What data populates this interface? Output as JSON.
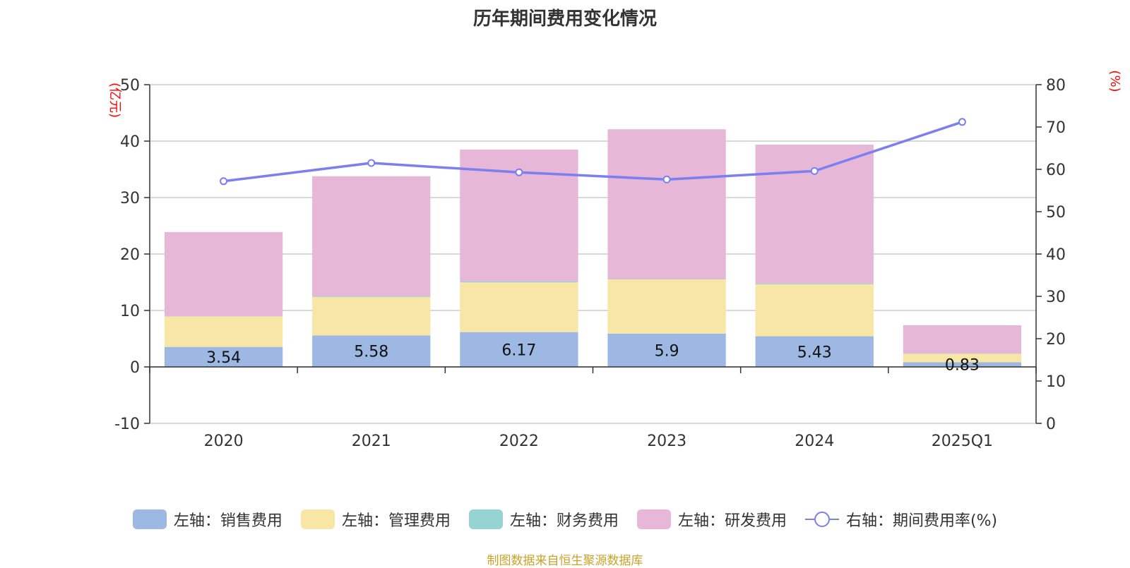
{
  "title": "历年期间费用变化情况",
  "source_note": "制图数据来自恒生聚源数据库",
  "colors": {
    "sales": "#9db8e2",
    "admin": "#f7e6a6",
    "finance": "#96d3d3",
    "rd": "#e6b7d7",
    "rate_line": "#7b7ff0",
    "axis": "#333333",
    "grid": "#cccccc",
    "unit_text": "#ff0000"
  },
  "legend": [
    {
      "label": "左轴：销售费用",
      "series": "sales",
      "kind": "bar"
    },
    {
      "label": "左轴：管理费用",
      "series": "admin",
      "kind": "bar"
    },
    {
      "label": "左轴：财务费用",
      "series": "finance",
      "kind": "bar"
    },
    {
      "label": "左轴：研发费用",
      "series": "rd",
      "kind": "bar"
    },
    {
      "label": "右轴：期间费用率(%)",
      "series": "rate_line",
      "kind": "line"
    }
  ],
  "chart_data": {
    "type": "bar",
    "stacked": true,
    "categories": [
      "2020",
      "2021",
      "2022",
      "2023",
      "2024",
      "2025Q1"
    ],
    "left_axis": {
      "unit": "(亿元)",
      "ylim": [
        -10,
        50
      ],
      "ticks": [
        -10,
        0,
        10,
        20,
        30,
        40,
        50
      ]
    },
    "right_axis": {
      "unit": "(%)",
      "ylim": [
        0,
        80
      ],
      "ticks": [
        0,
        10,
        20,
        30,
        40,
        50,
        60,
        70,
        80
      ]
    },
    "grid": true,
    "legend_position": "bottom",
    "series": [
      {
        "name": "左轴：销售费用",
        "key": "sales",
        "axis": "left",
        "values": [
          3.54,
          5.58,
          6.17,
          5.9,
          5.43,
          0.83
        ],
        "data_labels": [
          "3.54",
          "5.58",
          "6.17",
          "5.9",
          "5.43",
          "0.83"
        ]
      },
      {
        "name": "左轴：管理费用",
        "key": "admin",
        "axis": "left",
        "values": [
          5.4,
          6.8,
          8.8,
          9.6,
          9.2,
          1.5
        ]
      },
      {
        "name": "左轴：财务费用",
        "key": "finance",
        "axis": "left",
        "values": [
          0.05,
          0.1,
          0.15,
          0.1,
          0.15,
          0.05
        ]
      },
      {
        "name": "左轴：研发费用",
        "key": "rd",
        "axis": "left",
        "values": [
          14.9,
          21.3,
          23.4,
          26.5,
          24.6,
          5.0
        ]
      },
      {
        "name": "右轴：期间费用率(%)",
        "key": "rate_line",
        "axis": "right",
        "type": "line",
        "values": [
          57.2,
          61.5,
          59.3,
          57.6,
          59.6,
          71.2
        ]
      }
    ]
  }
}
